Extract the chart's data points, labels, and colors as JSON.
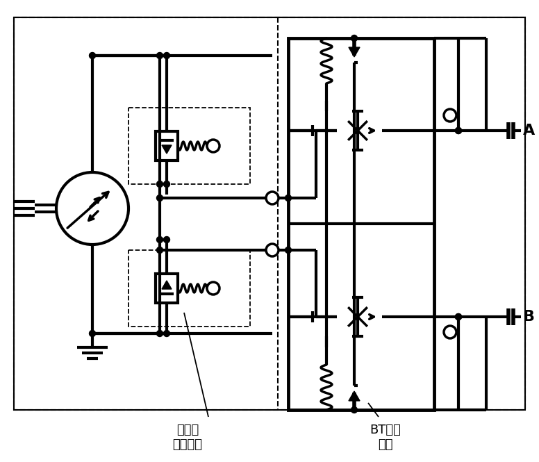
{
  "bg_color": "#ffffff",
  "line_color": "#000000",
  "lw": 2.5,
  "lw_thick": 3.0,
  "fig_width": 7.76,
  "fig_height": 6.65,
  "dpi": 100,
  "label_chazhuang": "插装阀\n（可选）",
  "label_bt": "BT制动\n阀块",
  "label_A": "A",
  "label_B": "B"
}
